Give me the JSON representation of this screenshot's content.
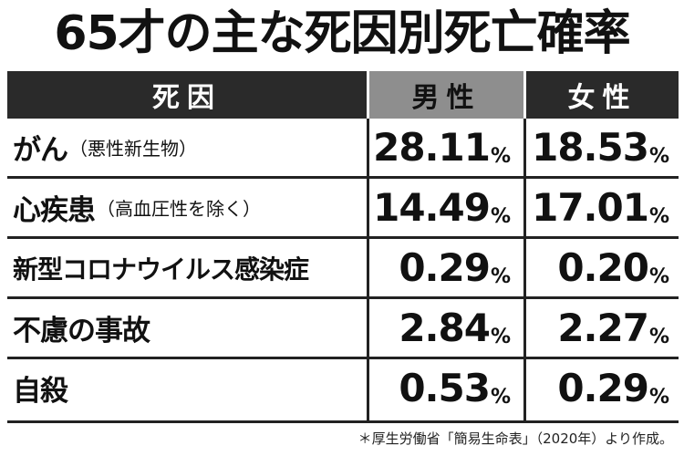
{
  "title": "65才の主な死因別死亡確率",
  "table": {
    "headers": {
      "cause": "死因",
      "male": "男性",
      "female": "女性"
    },
    "rows": [
      {
        "cause": "がん",
        "cause_note": "（悪性新生物）",
        "male": "28.11",
        "female": "18.53"
      },
      {
        "cause": "心疾患",
        "cause_note": "（高血圧性を除く）",
        "male": "14.49",
        "female": "17.01"
      },
      {
        "cause": "新型コロナウイルス感染症",
        "cause_note": "",
        "male": "0.29",
        "female": "0.20"
      },
      {
        "cause": "不慮の事故",
        "cause_note": "",
        "male": "2.84",
        "female": "2.27"
      },
      {
        "cause": "自殺",
        "cause_note": "",
        "male": "0.53",
        "female": "0.29"
      }
    ],
    "unit": "%"
  },
  "footnote": "＊厚生労働省「簡易生命表」（2020年）より作成。"
}
